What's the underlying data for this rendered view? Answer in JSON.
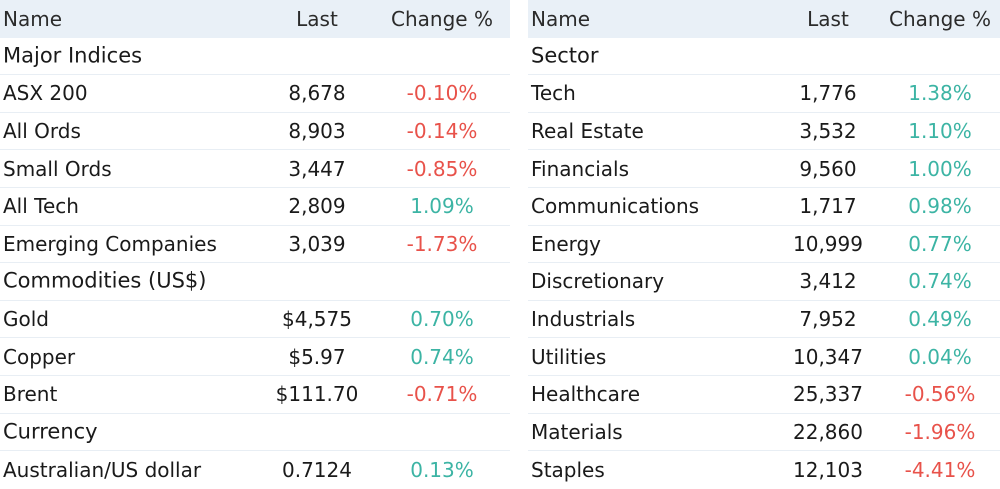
{
  "left": {
    "header": {
      "name": "Name",
      "last": "Last",
      "change": "Change %"
    },
    "rows": [
      {
        "type": "section",
        "name": "Major Indices"
      },
      {
        "type": "data",
        "name": "ASX 200",
        "last": "8,678",
        "change": "-0.10%",
        "dir": "neg"
      },
      {
        "type": "data",
        "name": "All Ords",
        "last": "8,903",
        "change": "-0.14%",
        "dir": "neg"
      },
      {
        "type": "data",
        "name": "Small Ords",
        "last": "3,447",
        "change": "-0.85%",
        "dir": "neg"
      },
      {
        "type": "data",
        "name": "All Tech",
        "last": "2,809",
        "change": "1.09%",
        "dir": "pos"
      },
      {
        "type": "data",
        "name": "Emerging Companies",
        "last": "3,039",
        "change": "-1.73%",
        "dir": "neg"
      },
      {
        "type": "section",
        "name": "Commodities (US$)"
      },
      {
        "type": "data",
        "name": "Gold",
        "last": "$4,575",
        "change": "0.70%",
        "dir": "pos"
      },
      {
        "type": "data",
        "name": "Copper",
        "last": "$5.97",
        "change": "0.74%",
        "dir": "pos"
      },
      {
        "type": "data",
        "name": "Brent",
        "last": "$111.70",
        "change": "-0.71%",
        "dir": "neg"
      },
      {
        "type": "section",
        "name": "Currency"
      },
      {
        "type": "data",
        "name": "Australian/US dollar",
        "last": "0.7124",
        "change": "0.13%",
        "dir": "pos"
      }
    ]
  },
  "right": {
    "header": {
      "name": "Name",
      "last": "Last",
      "change": "Change %"
    },
    "rows": [
      {
        "type": "section",
        "name": "Sector"
      },
      {
        "type": "data",
        "name": "Tech",
        "last": "1,776",
        "change": "1.38%",
        "dir": "pos"
      },
      {
        "type": "data",
        "name": "Real Estate",
        "last": "3,532",
        "change": "1.10%",
        "dir": "pos"
      },
      {
        "type": "data",
        "name": "Financials",
        "last": "9,560",
        "change": "1.00%",
        "dir": "pos"
      },
      {
        "type": "data",
        "name": "Communications",
        "last": "1,717",
        "change": "0.98%",
        "dir": "pos"
      },
      {
        "type": "data",
        "name": "Energy",
        "last": "10,999",
        "change": "0.77%",
        "dir": "pos"
      },
      {
        "type": "data",
        "name": "Discretionary",
        "last": "3,412",
        "change": "0.74%",
        "dir": "pos"
      },
      {
        "type": "data",
        "name": "Industrials",
        "last": "7,952",
        "change": "0.49%",
        "dir": "pos"
      },
      {
        "type": "data",
        "name": "Utilities",
        "last": "10,347",
        "change": "0.04%",
        "dir": "pos"
      },
      {
        "type": "data",
        "name": "Healthcare",
        "last": "25,337",
        "change": "-0.56%",
        "dir": "neg"
      },
      {
        "type": "data",
        "name": "Materials",
        "last": "22,860",
        "change": "-1.96%",
        "dir": "neg"
      },
      {
        "type": "data",
        "name": "Staples",
        "last": "12,103",
        "change": "-4.41%",
        "dir": "neg"
      }
    ]
  },
  "colors": {
    "negative": "#e8524a",
    "positive": "#3cb4a4",
    "header_bg": "#e9f0f7"
  }
}
